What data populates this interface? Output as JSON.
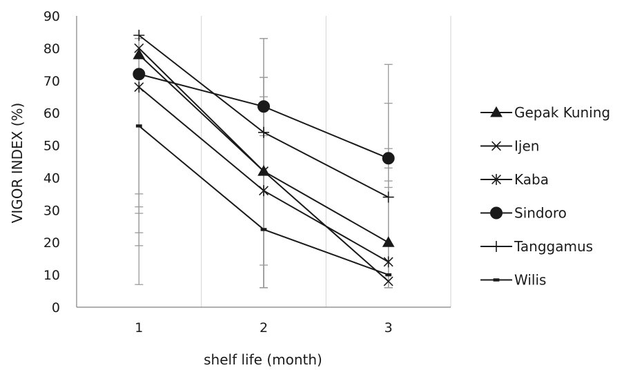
{
  "chart_data": {
    "type": "line",
    "x": [
      1,
      2,
      3
    ],
    "xlabel": "shelf life (month)",
    "ylabel": "VIGOR INDEX (%)",
    "ylim": [
      0,
      90
    ],
    "yticks": [
      0,
      10,
      20,
      30,
      40,
      50,
      60,
      70,
      80,
      90
    ],
    "xticks": [
      "1",
      "2",
      "3"
    ],
    "grid": "vertical",
    "legend_position": "right",
    "line_color": "#1a1a1a",
    "series": [
      {
        "name": "Gepak Kuning",
        "marker": "triangle",
        "values": [
          78,
          42,
          20
        ]
      },
      {
        "name": "Ijen",
        "marker": "x",
        "values": [
          80,
          42,
          8
        ]
      },
      {
        "name": "Kaba",
        "marker": "asterisk",
        "values": [
          68,
          36,
          14
        ]
      },
      {
        "name": "Sindoro",
        "marker": "circle",
        "values": [
          72,
          62,
          46
        ]
      },
      {
        "name": "Tanggamus",
        "marker": "plus",
        "values": [
          84,
          54,
          34
        ]
      },
      {
        "name": "Wilis",
        "marker": "dash",
        "values": [
          56,
          24,
          10
        ]
      }
    ]
  }
}
